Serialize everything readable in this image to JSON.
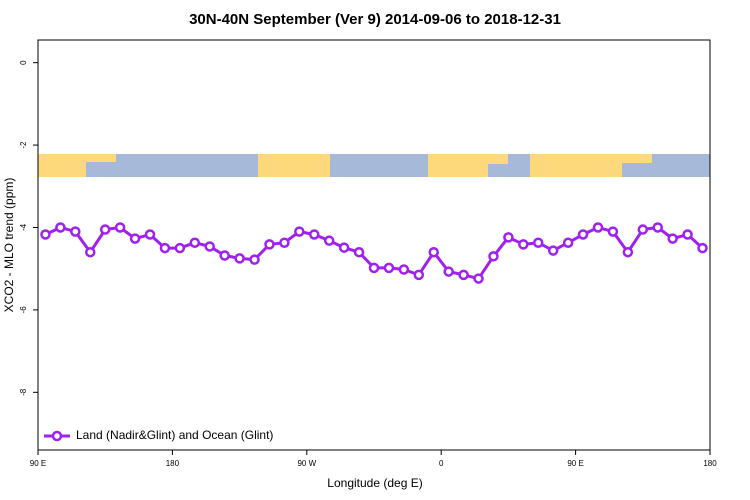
{
  "chart_data": {
    "type": "line",
    "title": "30N-40N September (Ver 9)   2014-09-06 to 2018-12-31",
    "xlabel": "Longitude (deg E)",
    "ylabel": "XCO2 - MLO trend (ppm)",
    "xlim": [
      90,
      540
    ],
    "ylim": [
      -9.4,
      0.55
    ],
    "xticks": [
      {
        "value": 90,
        "label": "90 E"
      },
      180,
      {
        "value": 270,
        "label": "90 W"
      },
      {
        "value": 360,
        "label": "0"
      },
      {
        "value": 450,
        "label": "90 E"
      },
      {
        "value": 540,
        "label": "180"
      }
    ],
    "yticks": [
      0,
      -2,
      -4,
      -6,
      -8
    ],
    "legend": "bottom-left",
    "x": [
      95,
      105,
      115,
      125,
      135,
      145,
      155,
      165,
      175,
      185,
      195,
      205,
      215,
      225,
      235,
      245,
      255,
      265,
      275,
      285,
      295,
      305,
      315,
      325,
      335,
      345,
      355,
      365,
      375,
      385,
      395,
      405,
      415,
      425,
      435,
      445,
      455,
      465,
      475,
      485,
      495,
      505,
      515,
      525,
      535
    ],
    "series": [
      {
        "name": "Land (Nadir&Glint) and Ocean (Glint)",
        "color": "#a020f0",
        "values": [
          -4.17,
          -4.0,
          -4.1,
          -4.6,
          -4.05,
          -4.0,
          -4.27,
          -4.17,
          -4.5,
          -4.5,
          -4.37,
          -4.46,
          -4.68,
          -4.75,
          -4.78,
          -4.41,
          -4.37,
          -4.1,
          -4.17,
          -4.32,
          -4.49,
          -4.6,
          -4.98,
          -4.98,
          -5.02,
          -5.15,
          -4.6,
          -5.07,
          -5.15,
          -5.24,
          -4.7,
          -4.24,
          -4.41,
          -4.37,
          -4.56,
          -4.37,
          -4.17,
          -4.0,
          -4.1,
          -4.6,
          -4.05,
          -4.0,
          -4.27,
          -4.17,
          -4.5
        ]
      }
    ]
  }
}
